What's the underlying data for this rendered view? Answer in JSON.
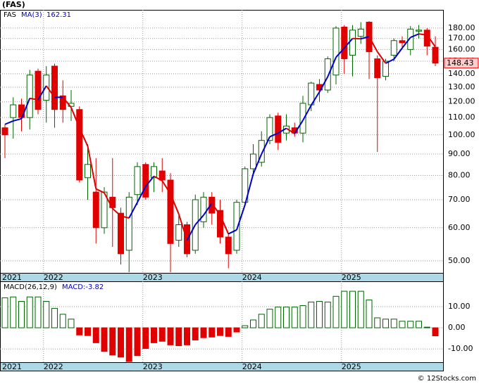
{
  "chart_data": [
    {
      "type": "candlestick",
      "title": "(FAS)",
      "series_name": "FAS",
      "categories": [
        "2021",
        null,
        null,
        null,
        null,
        "2022",
        null,
        null,
        null,
        null,
        null,
        null,
        null,
        null,
        null,
        null,
        null,
        "2023",
        null,
        null,
        null,
        null,
        null,
        null,
        null,
        null,
        null,
        null,
        null,
        "2024",
        null,
        null,
        null,
        null,
        null,
        null,
        null,
        null,
        null,
        null,
        null,
        "2025",
        null,
        null,
        null,
        null,
        null,
        null,
        null,
        null,
        null,
        null,
        null
      ],
      "open": [
        104,
        110,
        118,
        110,
        142,
        121,
        146,
        124,
        117,
        115,
        79,
        73,
        60,
        71,
        65,
        53,
        72,
        85,
        79,
        82,
        78,
        56,
        61,
        53,
        62,
        71,
        66,
        57,
        53,
        69,
        83,
        86,
        97,
        111,
        101,
        104,
        101,
        118,
        132,
        128,
        139,
        181,
        155,
        172,
        186,
        152,
        138,
        155,
        168,
        160,
        177,
        178,
        162
      ],
      "high": [
        106,
        123,
        122,
        143,
        144,
        146,
        148,
        135,
        128,
        117,
        95,
        88,
        75,
        88,
        67,
        73,
        86,
        86,
        86,
        88,
        81,
        64,
        62,
        72,
        73,
        73,
        70,
        58,
        70,
        84,
        95,
        102,
        112,
        113,
        112,
        107,
        124,
        134,
        136,
        154,
        182,
        183,
        183,
        186,
        187,
        155,
        152,
        170,
        172,
        182,
        183,
        180,
        172
      ],
      "low": [
        88,
        98,
        102,
        103,
        112,
        107,
        104,
        107,
        108,
        77,
        70,
        55,
        58,
        54,
        49,
        47,
        68,
        70,
        73,
        73,
        47,
        54,
        51,
        52,
        60,
        61,
        55,
        48,
        52,
        68,
        80,
        84,
        95,
        92,
        97,
        99,
        96,
        114,
        120,
        126,
        132,
        140,
        138,
        165,
        136,
        91,
        135,
        150,
        160,
        155,
        170,
        155,
        146
      ],
      "close": [
        100,
        118,
        110,
        139,
        115,
        139,
        115,
        115,
        119,
        78,
        85,
        60,
        73,
        67,
        52,
        71,
        84,
        71,
        84,
        78,
        55,
        61,
        52,
        70,
        71,
        65,
        57,
        52,
        69,
        83,
        90,
        97,
        110,
        96,
        105,
        101,
        119,
        133,
        128,
        152,
        180,
        152,
        178,
        179,
        158,
        137,
        150,
        168,
        166,
        179,
        178,
        163,
        148.43
      ],
      "ma": {
        "name": "MA(3)",
        "rising_color": "#0000cc",
        "falling_color": "#e00000",
        "values": [
          106,
          108,
          109.3,
          122.3,
          121.3,
          131,
          123,
          123,
          116.3,
          104,
          94,
          74.3,
          72.7,
          66.7,
          64,
          63.3,
          69,
          75.3,
          79.7,
          77.7,
          72.3,
          64.7,
          56,
          61,
          64.3,
          68.7,
          64.3,
          58,
          59.3,
          68,
          80.7,
          90,
          99,
          101,
          103.7,
          100.7,
          108.3,
          117.7,
          126.7,
          137.7,
          153.3,
          161.3,
          170,
          169.7,
          171.7,
          158,
          148.3,
          151.7,
          161.3,
          171,
          174.3,
          173.3,
          162.31
        ]
      },
      "up_color": "#006400",
      "down_color": "#e00000",
      "log_scale": true,
      "grid": true,
      "ylim": [
        46.8,
        199
      ],
      "yticks": [
        {
          "value": 50,
          "label": "50.00"
        },
        {
          "value": 60,
          "label": "60.00"
        },
        {
          "value": 70,
          "label": "70.00"
        },
        {
          "value": 80,
          "label": "80.00"
        },
        {
          "value": 90,
          "label": "90.00"
        },
        {
          "value": 100,
          "label": "100.00"
        },
        {
          "value": 110,
          "label": "110.00"
        },
        {
          "value": 120,
          "label": "120.00"
        },
        {
          "value": 130,
          "label": "130.00"
        },
        {
          "value": 140,
          "label": "140.00"
        },
        {
          "value": 150,
          "label": "150.00"
        },
        {
          "value": 160,
          "label": "160.00"
        },
        {
          "value": 170,
          "label": "170.00"
        },
        {
          "value": 180,
          "label": "180.00"
        }
      ],
      "footer": "© 12Stocks.com"
    },
    {
      "type": "bar",
      "title": "MACD(26,12,9)",
      "legend_value": "MACD:-3.82",
      "categories": [
        "2021",
        null,
        null,
        null,
        null,
        "2022",
        null,
        null,
        null,
        null,
        null,
        null,
        null,
        null,
        null,
        null,
        null,
        "2023",
        null,
        null,
        null,
        null,
        null,
        null,
        null,
        null,
        null,
        null,
        null,
        "2024",
        null,
        null,
        null,
        null,
        null,
        null,
        null,
        null,
        null,
        null,
        null,
        "2025",
        null,
        null,
        null,
        null,
        null,
        null,
        null,
        null,
        null,
        null,
        null
      ],
      "values": [
        14.2,
        14.6,
        12.5,
        14.6,
        14.6,
        12.5,
        9.2,
        6.4,
        4.1,
        -3.4,
        -3.7,
        -7.1,
        -11.2,
        -12.9,
        -13.9,
        -16,
        -13.2,
        -9.8,
        -7.1,
        -6.4,
        -8.1,
        -8.5,
        -8.1,
        -5.8,
        -4.7,
        -4.4,
        -3.7,
        -4.1,
        -2,
        1,
        3.7,
        6.4,
        8.8,
        9.8,
        9.8,
        9.8,
        10.5,
        12.2,
        12.5,
        12.2,
        14.9,
        17.3,
        17.3,
        17.3,
        13.2,
        4.7,
        4.1,
        4.1,
        3.1,
        3.1,
        3.1,
        0.3,
        -3.82
      ],
      "up_color": "#006400",
      "down_color": "#e00000",
      "grid": true,
      "ylim": [
        -16.3,
        22
      ],
      "yticks": [
        {
          "value": -10,
          "label": "-10.00"
        },
        {
          "value": 0,
          "label": "0.00"
        },
        {
          "value": 10,
          "label": "10.00"
        }
      ]
    }
  ]
}
